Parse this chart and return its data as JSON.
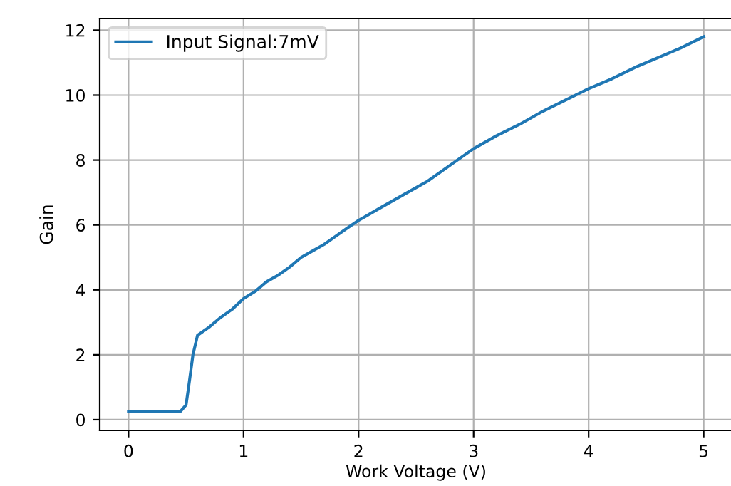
{
  "chart_data": {
    "type": "line",
    "xlabel": "Work Voltage (V)",
    "ylabel": "Gain",
    "x": [
      0,
      0.2,
      0.45,
      0.5,
      0.53,
      0.56,
      0.6,
      0.7,
      0.8,
      0.9,
      1.0,
      1.1,
      1.2,
      1.3,
      1.4,
      1.5,
      1.6,
      1.7,
      1.8,
      1.9,
      2.0,
      2.2,
      2.4,
      2.6,
      2.8,
      3.0,
      3.2,
      3.4,
      3.6,
      3.8,
      4.0,
      4.2,
      4.4,
      4.6,
      4.8,
      5.0
    ],
    "series": [
      {
        "name": "Input Signal:7mV",
        "color": "#1f77b4",
        "values": [
          0.25,
          0.25,
          0.25,
          0.45,
          1.2,
          2.0,
          2.6,
          2.85,
          3.15,
          3.4,
          3.73,
          3.95,
          4.25,
          4.45,
          4.7,
          5.0,
          5.2,
          5.4,
          5.65,
          5.9,
          6.14,
          6.55,
          6.95,
          7.35,
          7.85,
          8.35,
          8.75,
          9.1,
          9.5,
          9.85,
          10.2,
          10.5,
          10.85,
          11.15,
          11.45,
          11.8
        ]
      }
    ],
    "xlim": [
      -0.25,
      5.25
    ],
    "ylim": [
      -0.33,
      12.36
    ],
    "xticks": [
      0,
      1,
      2,
      3,
      4,
      5
    ],
    "yticks": [
      0,
      2,
      4,
      6,
      8,
      10,
      12
    ],
    "grid": true,
    "legend": "top left",
    "line_style": "solid",
    "marker": "none"
  }
}
